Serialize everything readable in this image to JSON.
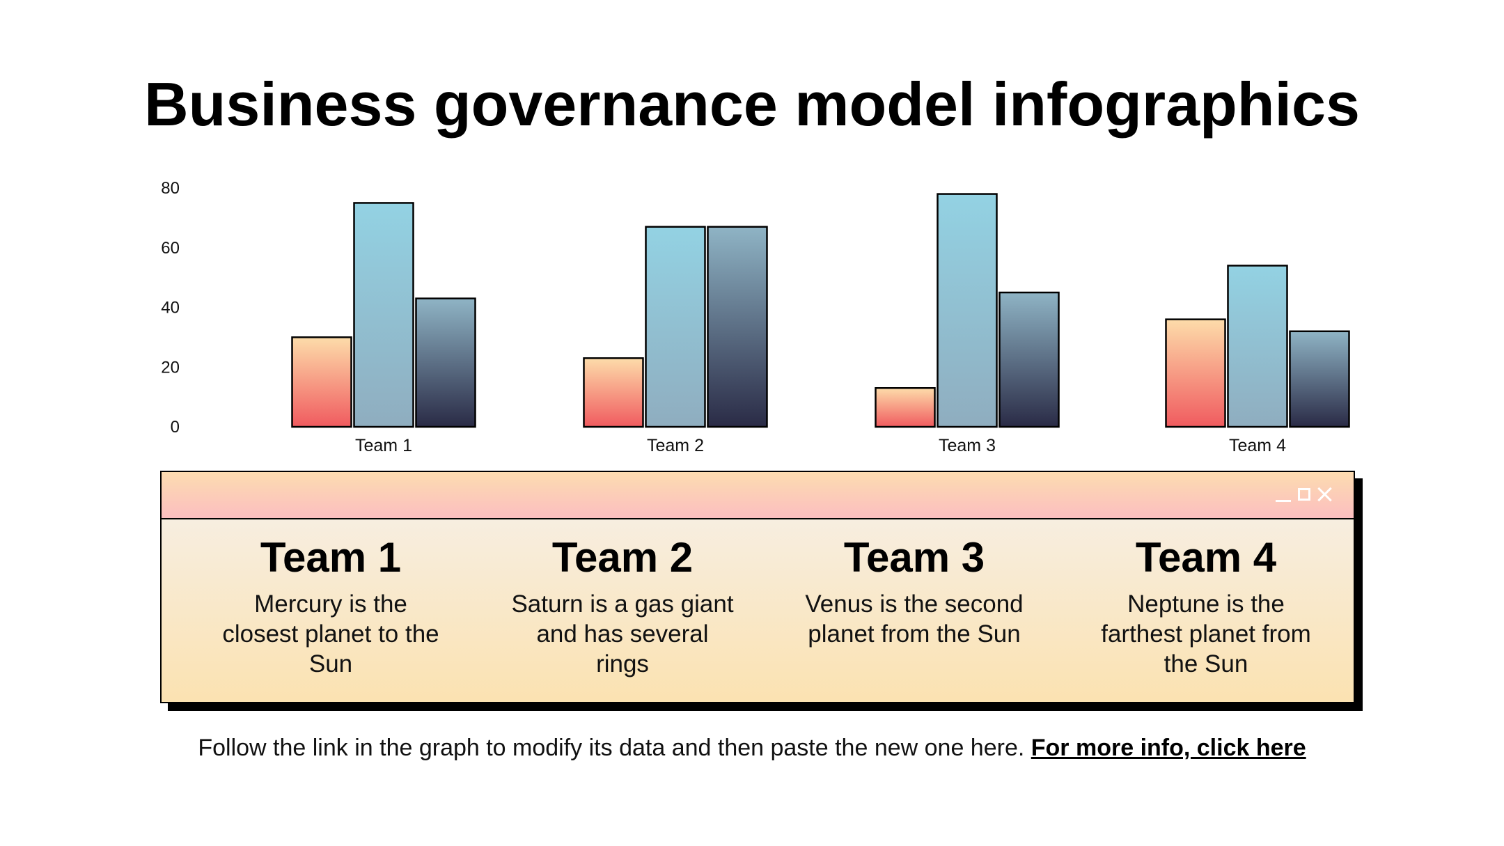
{
  "slide": {
    "title": "Business governance model infographics",
    "footer_text": "Follow the link in the graph to modify its data and then paste the new one here.",
    "footer_link": "For more info, click here"
  },
  "chart_data": {
    "type": "bar",
    "title": "",
    "xlabel": "",
    "ylabel": "",
    "categories": [
      "Team 1",
      "Team 2",
      "Team 3",
      "Team 4"
    ],
    "series": [
      {
        "values": [
          30,
          23,
          13,
          36
        ],
        "gradient": [
          "#fddcaa",
          "#f05b5f"
        ]
      },
      {
        "values": [
          75,
          67,
          78,
          54
        ],
        "gradient": [
          "#93d2e3",
          "#8fadbf"
        ]
      },
      {
        "values": [
          43,
          67,
          45,
          32
        ],
        "gradient": [
          "#8fb4c5",
          "#2a2b46"
        ]
      }
    ],
    "ylim": [
      0,
      80
    ],
    "yticks": [
      0,
      20,
      40,
      60,
      80
    ],
    "grid": false,
    "legend": "none"
  },
  "window": {
    "controls": [
      "minimize-icon",
      "maximize-icon",
      "close-icon"
    ],
    "teams": [
      {
        "name": "Team 1",
        "description": "Mercury is the closest planet to the Sun"
      },
      {
        "name": "Team 2",
        "description": "Saturn is a gas giant and has several rings"
      },
      {
        "name": "Team 3",
        "description": "Venus is the second planet from the Sun"
      },
      {
        "name": "Team 4",
        "description": "Neptune is the farthest planet from the Sun"
      }
    ]
  }
}
